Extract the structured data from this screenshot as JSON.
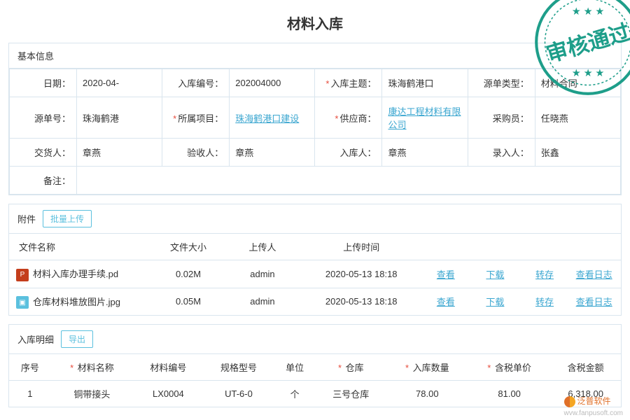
{
  "page_title": "材料入库",
  "stamp": {
    "text": "审核通过",
    "color": "#1e9e8a"
  },
  "basic_info": {
    "section_title": "基本信息",
    "rows": [
      [
        {
          "label": "日期：",
          "value": "2020-04-",
          "required": false
        },
        {
          "label": "入库编号：",
          "value": "202004000",
          "required": false
        },
        {
          "label": "入库主题：",
          "value": "珠海鹤港口",
          "required": true
        },
        {
          "label": "源单类型：",
          "value": "材料合同",
          "required": false
        }
      ],
      [
        {
          "label": "源单号：",
          "value": "珠海鹤港",
          "required": false
        },
        {
          "label": "所属项目：",
          "value": "珠海鹤港口建设",
          "required": true,
          "link": true
        },
        {
          "label": "供应商：",
          "value": "康达工程材料有限公司",
          "required": true,
          "link": true
        },
        {
          "label": "采购员：",
          "value": "任晓燕",
          "required": false
        }
      ],
      [
        {
          "label": "交货人：",
          "value": "章燕",
          "required": false
        },
        {
          "label": "验收人：",
          "value": "章燕",
          "required": false
        },
        {
          "label": "入库人：",
          "value": "章燕",
          "required": false
        },
        {
          "label": "录入人：",
          "value": "张鑫",
          "required": false
        }
      ],
      [
        {
          "label": "备注：",
          "value": "",
          "required": false,
          "colspan": 7
        }
      ]
    ]
  },
  "attachments": {
    "section_title": "附件",
    "upload_btn": "批量上传",
    "columns": [
      "文件名称",
      "文件大小",
      "上传人",
      "上传时间"
    ],
    "actions": [
      "查看",
      "下载",
      "转存",
      "查看日志"
    ],
    "files": [
      {
        "icon": "ppt",
        "icon_text": "P",
        "name": "材料入库办理手续.pd",
        "size": "0.02M",
        "uploader": "admin",
        "time": "2020-05-13 18:18"
      },
      {
        "icon": "img",
        "icon_text": "▣",
        "name": "仓库材料堆放图片.jpg",
        "size": "0.05M",
        "uploader": "admin",
        "time": "2020-05-13 18:18"
      }
    ]
  },
  "details": {
    "section_title": "入库明细",
    "export_btn": "导出",
    "columns": [
      {
        "label": "序号",
        "required": false
      },
      {
        "label": "材料名称",
        "required": true
      },
      {
        "label": "材料编号",
        "required": false
      },
      {
        "label": "规格型号",
        "required": false
      },
      {
        "label": "单位",
        "required": false
      },
      {
        "label": "仓库",
        "required": true
      },
      {
        "label": "入库数量",
        "required": true
      },
      {
        "label": "含税单价",
        "required": true
      },
      {
        "label": "含税金额",
        "required": false
      }
    ],
    "rows": [
      {
        "seq": "1",
        "name": "铜带接头",
        "code": "LX0004",
        "spec": "UT-6-0",
        "unit": "个",
        "warehouse": "三号仓库",
        "qty": "78.00",
        "price": "81.00",
        "amount": "6,318.00"
      }
    ]
  },
  "watermark": {
    "text": "泛普软件",
    "url": "wvw.fanpusoft.com"
  }
}
